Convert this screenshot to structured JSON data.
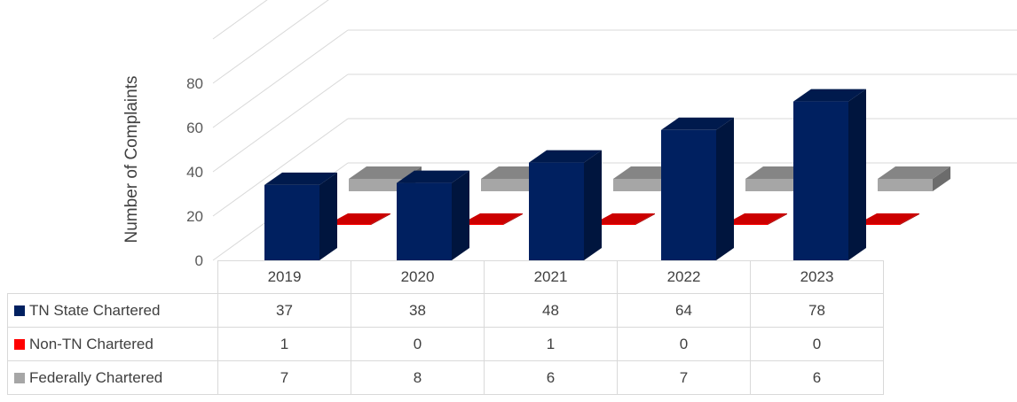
{
  "chart_data": {
    "type": "bar",
    "title": "",
    "xlabel": "",
    "ylabel": "Number of Complaints",
    "ylim": [
      0,
      80
    ],
    "yticks": [
      0,
      20,
      40,
      60,
      80
    ],
    "categories": [
      "2019",
      "2020",
      "2021",
      "2022",
      "2023"
    ],
    "series": [
      {
        "name": "TN State Chartered",
        "color": "#002060",
        "values": [
          37,
          38,
          48,
          64,
          78
        ]
      },
      {
        "name": "Non-TN Chartered",
        "color": "#ff0000",
        "values": [
          1,
          0,
          1,
          0,
          0
        ]
      },
      {
        "name": "Federally Chartered",
        "color": "#a6a6a6",
        "values": [
          7,
          8,
          6,
          7,
          6
        ]
      }
    ],
    "grid": true,
    "legend": "data-table",
    "style": "3d-column"
  }
}
